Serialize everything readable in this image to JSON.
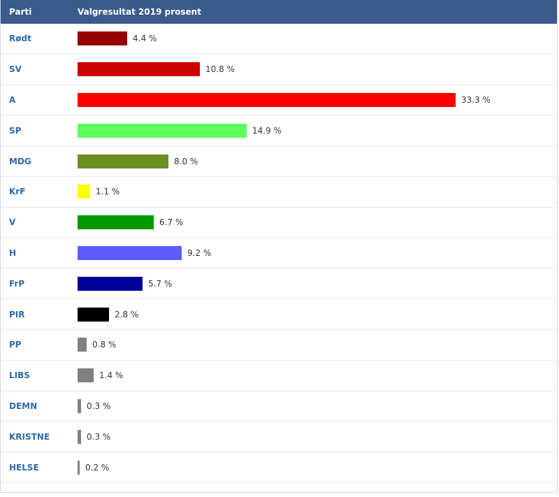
{
  "header": {
    "party_label": "Parti",
    "result_label": "Valgresultat 2019 prosent"
  },
  "chart_data": {
    "type": "bar",
    "orientation": "horizontal",
    "xlim": [
      0,
      33.3
    ],
    "categories": [
      "Rødt",
      "SV",
      "A",
      "SP",
      "MDG",
      "KrF",
      "V",
      "H",
      "FrP",
      "PIR",
      "PP",
      "LIBS",
      "DEMN",
      "KRISTNE",
      "HELSE"
    ],
    "values": [
      4.4,
      10.8,
      33.3,
      14.9,
      8.0,
      1.1,
      6.7,
      9.2,
      5.7,
      2.8,
      0.8,
      1.4,
      0.3,
      0.3,
      0.2
    ],
    "value_labels": [
      "4.4 %",
      "10.8 %",
      "33.3 %",
      "14.9 %",
      "8.0 %",
      "1.1 %",
      "6.7 %",
      "9.2 %",
      "5.7 %",
      "2.8 %",
      "0.8 %",
      "1.4 %",
      "0.3 %",
      "0.3 %",
      "0.2 %"
    ],
    "colors": [
      "#990000",
      "#cc0000",
      "#ff0000",
      "#5cff5c",
      "#6b8e23",
      "#ffff00",
      "#009900",
      "#5c5cff",
      "#000099",
      "#000000",
      "#808080",
      "#808080",
      "#808080",
      "#808080",
      "#808080"
    ]
  }
}
